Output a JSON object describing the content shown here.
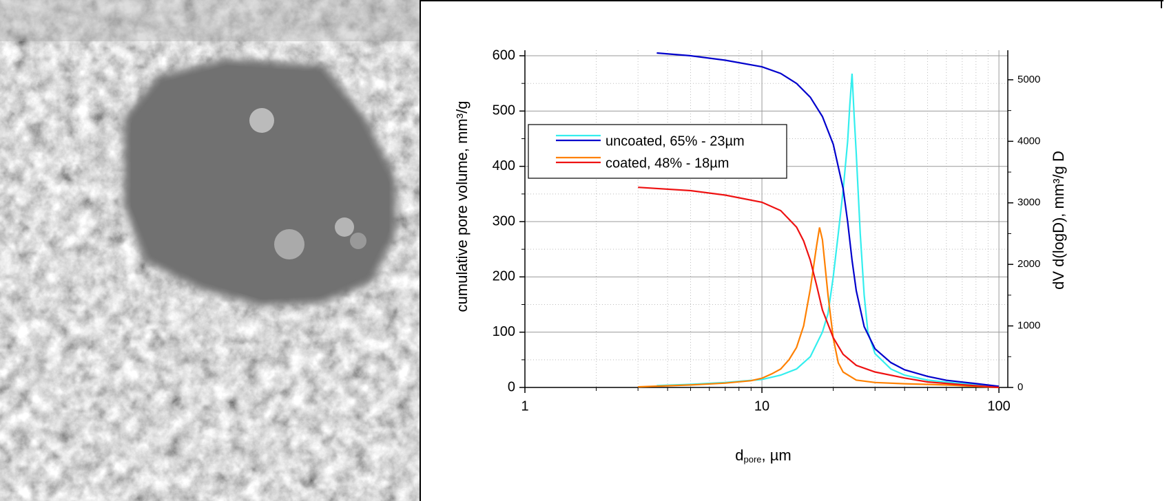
{
  "chart_data": {
    "type": "line",
    "xscale": "log",
    "xlabel": "d",
    "xlabel_sub": "pore",
    "xlabel_suffix": ", µm",
    "ylabel": "cumulative pore volume, mm³/g",
    "y2label": "dV d(logD), mm³/g D",
    "xlim": [
      1,
      109
    ],
    "xticks": [
      1,
      10,
      100
    ],
    "xminorticks": [
      2,
      3,
      4,
      5,
      6,
      7,
      8,
      9,
      20,
      30,
      40,
      50,
      60,
      70,
      80,
      90
    ],
    "ylim": [
      0,
      610
    ],
    "yticks": [
      0,
      100,
      200,
      300,
      400,
      500,
      600
    ],
    "yminorticks": [
      50,
      150,
      250,
      350,
      450,
      550
    ],
    "y2lim": [
      0,
      5480
    ],
    "y2ticks": [
      0,
      1000,
      2000,
      3000,
      4000,
      5000
    ],
    "y2minorticks": [
      500,
      1500,
      2500,
      3500,
      4500
    ],
    "grid": true,
    "legend": "upper left",
    "series": [
      {
        "name": "uncoated, 65% - 23µm",
        "color": "#33eeee",
        "axis": "y2",
        "x": [
          3.6,
          5,
          7,
          10,
          12,
          14,
          16,
          18,
          19,
          20,
          21,
          22,
          23,
          23.5,
          24,
          24.5,
          25,
          26,
          27,
          28,
          30,
          35,
          40,
          50,
          70,
          90,
          100
        ],
        "values": [
          30,
          50,
          80,
          130,
          200,
          300,
          500,
          900,
          1200,
          1800,
          2500,
          3200,
          4000,
          4600,
          5100,
          4400,
          3800,
          2500,
          1500,
          900,
          550,
          300,
          200,
          120,
          60,
          30,
          0
        ]
      },
      {
        "name": "uncoated, 65% - 23µm",
        "color": "#0000cc",
        "x": [
          3.6,
          5,
          7,
          10,
          12,
          14,
          16,
          18,
          20,
          22,
          23,
          24,
          25,
          27,
          30,
          35,
          40,
          50,
          60,
          80,
          100
        ],
        "values": [
          605,
          600,
          592,
          580,
          568,
          550,
          525,
          490,
          440,
          360,
          300,
          230,
          175,
          110,
          70,
          45,
          32,
          20,
          13,
          7,
          2
        ]
      },
      {
        "name": "coated, 48% - 18µm",
        "color": "#ff8000",
        "axis": "y2",
        "x": [
          3,
          5,
          7,
          9,
          10,
          11,
          12,
          13,
          14,
          15,
          16,
          17,
          17.5,
          18,
          19,
          20,
          21,
          22,
          25,
          30,
          40,
          60,
          100
        ],
        "values": [
          10,
          40,
          70,
          110,
          150,
          220,
          300,
          450,
          650,
          1000,
          1600,
          2300,
          2600,
          2400,
          1500,
          800,
          400,
          250,
          120,
          80,
          60,
          40,
          0
        ]
      },
      {
        "name": "coated, 48% - 18µm",
        "color": "#ee1111",
        "x": [
          3,
          5,
          7,
          10,
          12,
          14,
          15,
          16,
          17,
          18,
          20,
          22,
          25,
          30,
          40,
          50,
          70,
          100
        ],
        "values": [
          362,
          356,
          348,
          335,
          320,
          290,
          265,
          230,
          185,
          140,
          90,
          60,
          40,
          28,
          17,
          10,
          5,
          0
        ]
      }
    ]
  }
}
